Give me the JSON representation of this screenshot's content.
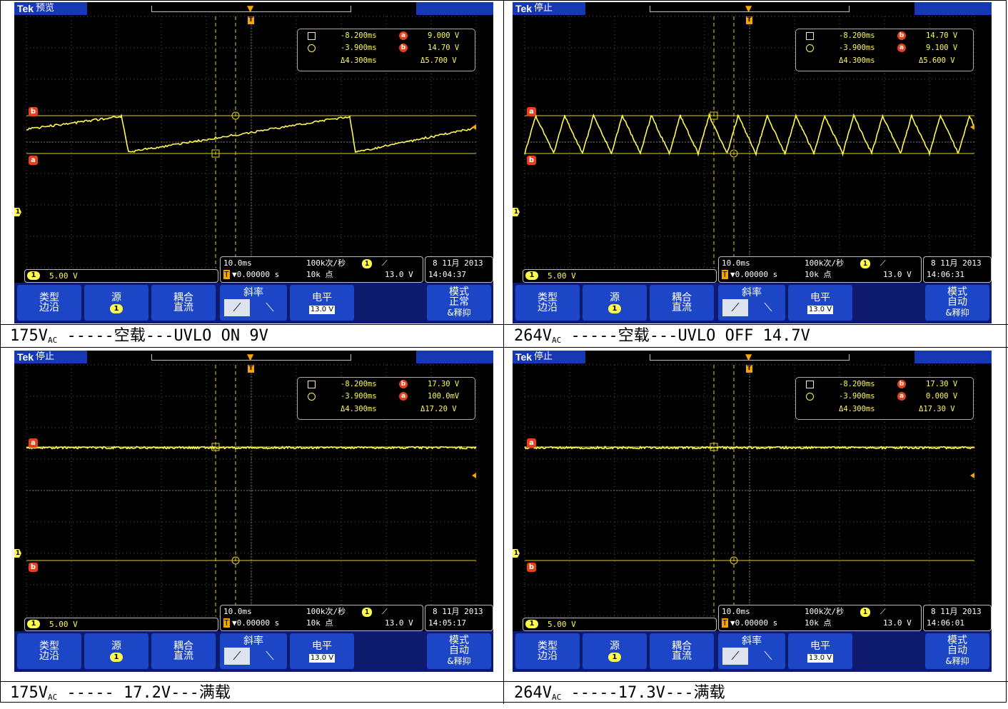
{
  "panels": [
    {
      "status": "预览",
      "meas": {
        "c1_time": "-8.200ms",
        "c1_val": "9.000 V",
        "c2_time": "-3.900ms",
        "c2_val": "14.70 V",
        "dt": "Δ4.300ms",
        "dv": "Δ5.700 V"
      },
      "ch_scale": "5.00 V",
      "timebase": "10.0ms",
      "trig_pos": "▼0.00000 s",
      "rate": "100k次/秒",
      "points": "10k 点",
      "trig_level": "13.0 V",
      "date": "8 11月  2013",
      "time": "14:04:37",
      "menu": {
        "type_l1": "类型",
        "type_l2": "边沿",
        "src_l1": "源",
        "src_ch": "1",
        "coupling_l1": "耦合",
        "coupling_l2": "直流",
        "slope": "斜率",
        "level_l1": "电平",
        "level_val": "13.0 V",
        "mode_l1": "模式",
        "mode_l2": "正常",
        "mode_l3": "&释抑"
      },
      "cursor_label_top": "b",
      "cursor_label_bottom": "a",
      "caption": {
        "pre": "175V",
        "sub": "AC",
        "post": " -----空载---UVLO ON 9V"
      }
    },
    {
      "status": "停止",
      "meas": {
        "c1_time": "-8.200ms",
        "c1_val": "14.70 V",
        "c2_time": "-3.900ms",
        "c2_val": "9.100 V",
        "dt": "Δ4.300ms",
        "dv": "Δ5.600 V"
      },
      "ch_scale": "5.00 V",
      "timebase": "10.0ms",
      "trig_pos": "▼0.00000 s",
      "rate": "100k次/秒",
      "points": "10k 点",
      "trig_level": "13.0 V",
      "date": "8 11月  2013",
      "time": "14:06:31",
      "menu": {
        "type_l1": "类型",
        "type_l2": "边沿",
        "src_l1": "源",
        "src_ch": "1",
        "coupling_l1": "耦合",
        "coupling_l2": "直流",
        "slope": "斜率",
        "level_l1": "电平",
        "level_val": "13.0 V",
        "mode_l1": "模式",
        "mode_l2": "自动",
        "mode_l3": "&释抑"
      },
      "cursor_label_top": "a",
      "cursor_label_bottom": "b",
      "caption": {
        "pre": "264V",
        "sub": "AC",
        "post": " -----空载---UVLO OFF 14.7V"
      }
    },
    {
      "status": "停止",
      "meas": {
        "c1_time": "-8.200ms",
        "c1_val": "17.30 V",
        "c2_time": "-3.900ms",
        "c2_val": "100.0mV",
        "dt": "Δ4.300ms",
        "dv": "Δ17.20 V"
      },
      "ch_scale": "5.00 V",
      "timebase": "10.0ms",
      "trig_pos": "▼0.00000 s",
      "rate": "100k次/秒",
      "points": "10k 点",
      "trig_level": "13.0 V",
      "date": "8 11月  2013",
      "time": "14:05:17",
      "menu": {
        "type_l1": "类型",
        "type_l2": "边沿",
        "src_l1": "源",
        "src_ch": "1",
        "coupling_l1": "耦合",
        "coupling_l2": "直流",
        "slope": "斜率",
        "level_l1": "电平",
        "level_val": "13.0 V",
        "mode_l1": "模式",
        "mode_l2": "自动",
        "mode_l3": "&释抑"
      },
      "cursor_label_top": "a",
      "cursor_label_bottom": "b",
      "caption": {
        "pre": "175V",
        "sub": "AC",
        "post": " ----- 17.2V---满载"
      }
    },
    {
      "status": "停止",
      "meas": {
        "c1_time": "-8.200ms",
        "c1_val": "17.30 V",
        "c2_time": "-3.900ms",
        "c2_val": "0.000 V",
        "dt": "Δ4.300ms",
        "dv": "Δ17.30 V"
      },
      "ch_scale": "5.00 V",
      "timebase": "10.0ms",
      "trig_pos": "▼0.00000 s",
      "rate": "100k次/秒",
      "points": "10k 点",
      "trig_level": "13.0 V",
      "date": "8 11月  2013",
      "time": "14:06:01",
      "menu": {
        "type_l1": "类型",
        "type_l2": "边沿",
        "src_l1": "源",
        "src_ch": "1",
        "coupling_l1": "耦合",
        "coupling_l2": "直流",
        "slope": "斜率",
        "level_l1": "电平",
        "level_val": "13.0 V",
        "mode_l1": "模式",
        "mode_l2": "自动",
        "mode_l3": "&释抑"
      },
      "cursor_label_top": "a",
      "cursor_label_bottom": "b",
      "caption": {
        "pre": "264V",
        "sub": "AC",
        "post": " -----17.3V---满载"
      }
    }
  ],
  "labels": {
    "logo": "Tek",
    "trigger_marker": "T",
    "ch1": "1"
  },
  "colors": {
    "trace": "#fffa50",
    "menu_blue": "#1c46c6",
    "badge": "#e8401a"
  }
}
